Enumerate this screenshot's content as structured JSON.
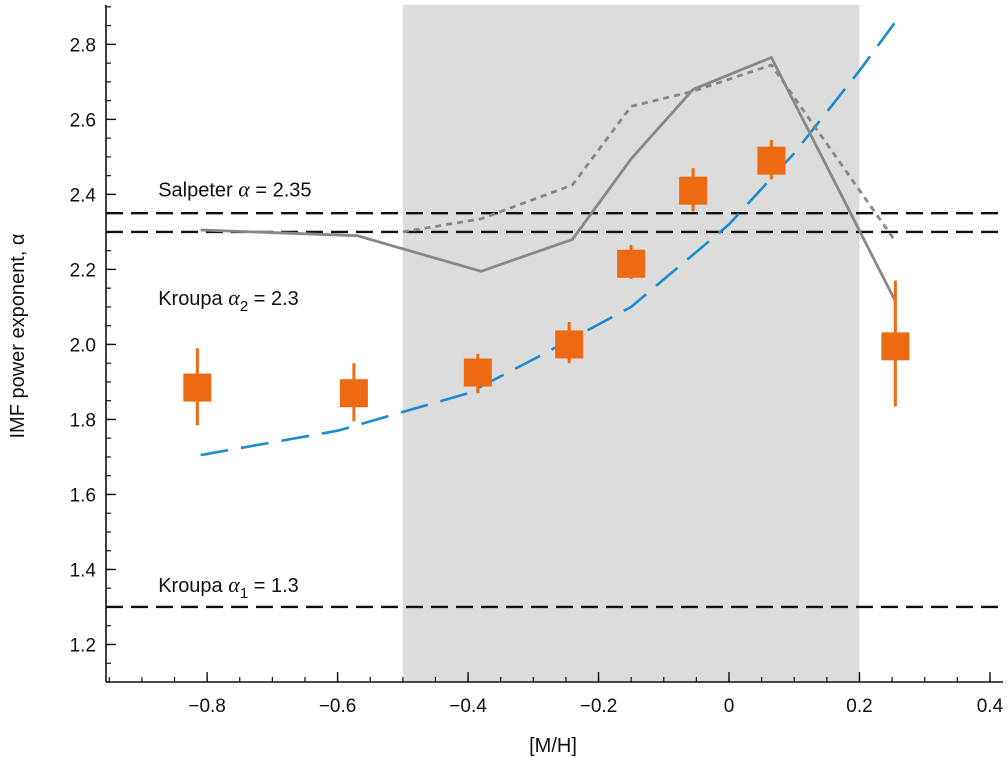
{
  "chart_data": {
    "type": "scatter",
    "xlabel": "[M/H]",
    "ylabel": "IMF power exponent, α",
    "xlim": [
      -0.955,
      0.42
    ],
    "ylim": [
      1.1,
      2.905
    ],
    "x_ticks": [
      -0.8,
      -0.6,
      -0.4,
      -0.2,
      0,
      0.2,
      0.4
    ],
    "x_tick_labels": [
      "−0.8",
      "−0.6",
      "−0.4",
      "−0.2",
      "0",
      "0.2",
      "0.4"
    ],
    "y_ticks": [
      1.2,
      1.4,
      1.6,
      1.8,
      2.0,
      2.2,
      2.4,
      2.6,
      2.8
    ],
    "y_tick_labels": [
      "1.2",
      "1.4",
      "1.6",
      "1.8",
      "2.0",
      "2.2",
      "2.4",
      "2.6",
      "2.8"
    ],
    "grid": false,
    "shaded_region": {
      "x": [
        -0.5,
        0.2
      ],
      "color": "#dcdcdc"
    },
    "reference_lines": [
      {
        "y": 2.35,
        "annotation": {
          "prefix": "Salpeter ",
          "symbol": "α",
          "subscript": "",
          "suffix": " = 2.35",
          "x": -0.875,
          "y": 2.395
        }
      },
      {
        "y": 2.3,
        "annotation": {
          "prefix": "Kroupa ",
          "symbol": "α",
          "subscript": "2",
          "suffix": " = 2.3",
          "x": -0.875,
          "y": 2.105
        }
      },
      {
        "y": 1.3,
        "annotation": {
          "prefix": "Kroupa ",
          "symbol": "α",
          "subscript": "1",
          "suffix": " = 1.3",
          "x": -0.875,
          "y": 1.34
        }
      }
    ],
    "series": [
      {
        "type": "errorbar",
        "marker": "square",
        "color": "#ee6a12",
        "x": [
          -0.815,
          -0.575,
          -0.385,
          -0.245,
          -0.15,
          -0.055,
          0.065,
          0.255
        ],
        "y": [
          1.885,
          1.87,
          1.925,
          2.0,
          2.215,
          2.41,
          2.49,
          1.995
        ],
        "yerr_low": [
          1.785,
          1.795,
          1.87,
          1.95,
          2.175,
          2.355,
          2.44,
          1.835
        ],
        "yerr_high": [
          1.99,
          1.95,
          1.975,
          2.06,
          2.265,
          2.47,
          2.545,
          2.17
        ]
      },
      {
        "type": "line",
        "style": "long-dash",
        "color": "#1a8ccf",
        "x": [
          -0.81,
          -0.6,
          -0.57,
          -0.4,
          -0.3,
          -0.15,
          0,
          0.1,
          0.2,
          0.255
        ],
        "y": [
          1.705,
          1.77,
          1.785,
          1.87,
          1.96,
          2.1,
          2.32,
          2.51,
          2.73,
          2.86
        ]
      },
      {
        "type": "line",
        "style": "solid",
        "color": "#888888",
        "x": [
          -0.81,
          -0.57,
          -0.38,
          -0.24,
          -0.15,
          -0.055,
          0.065,
          0.255
        ],
        "y": [
          2.305,
          2.29,
          2.195,
          2.28,
          2.495,
          2.68,
          2.765,
          2.115
        ]
      },
      {
        "type": "line",
        "style": "dotted",
        "color": "#888888",
        "x": [
          -0.5,
          -0.38,
          -0.24,
          -0.15,
          -0.055,
          0.065,
          0.255
        ],
        "y": [
          2.3,
          2.335,
          2.425,
          2.635,
          2.675,
          2.745,
          2.275
        ]
      }
    ]
  }
}
